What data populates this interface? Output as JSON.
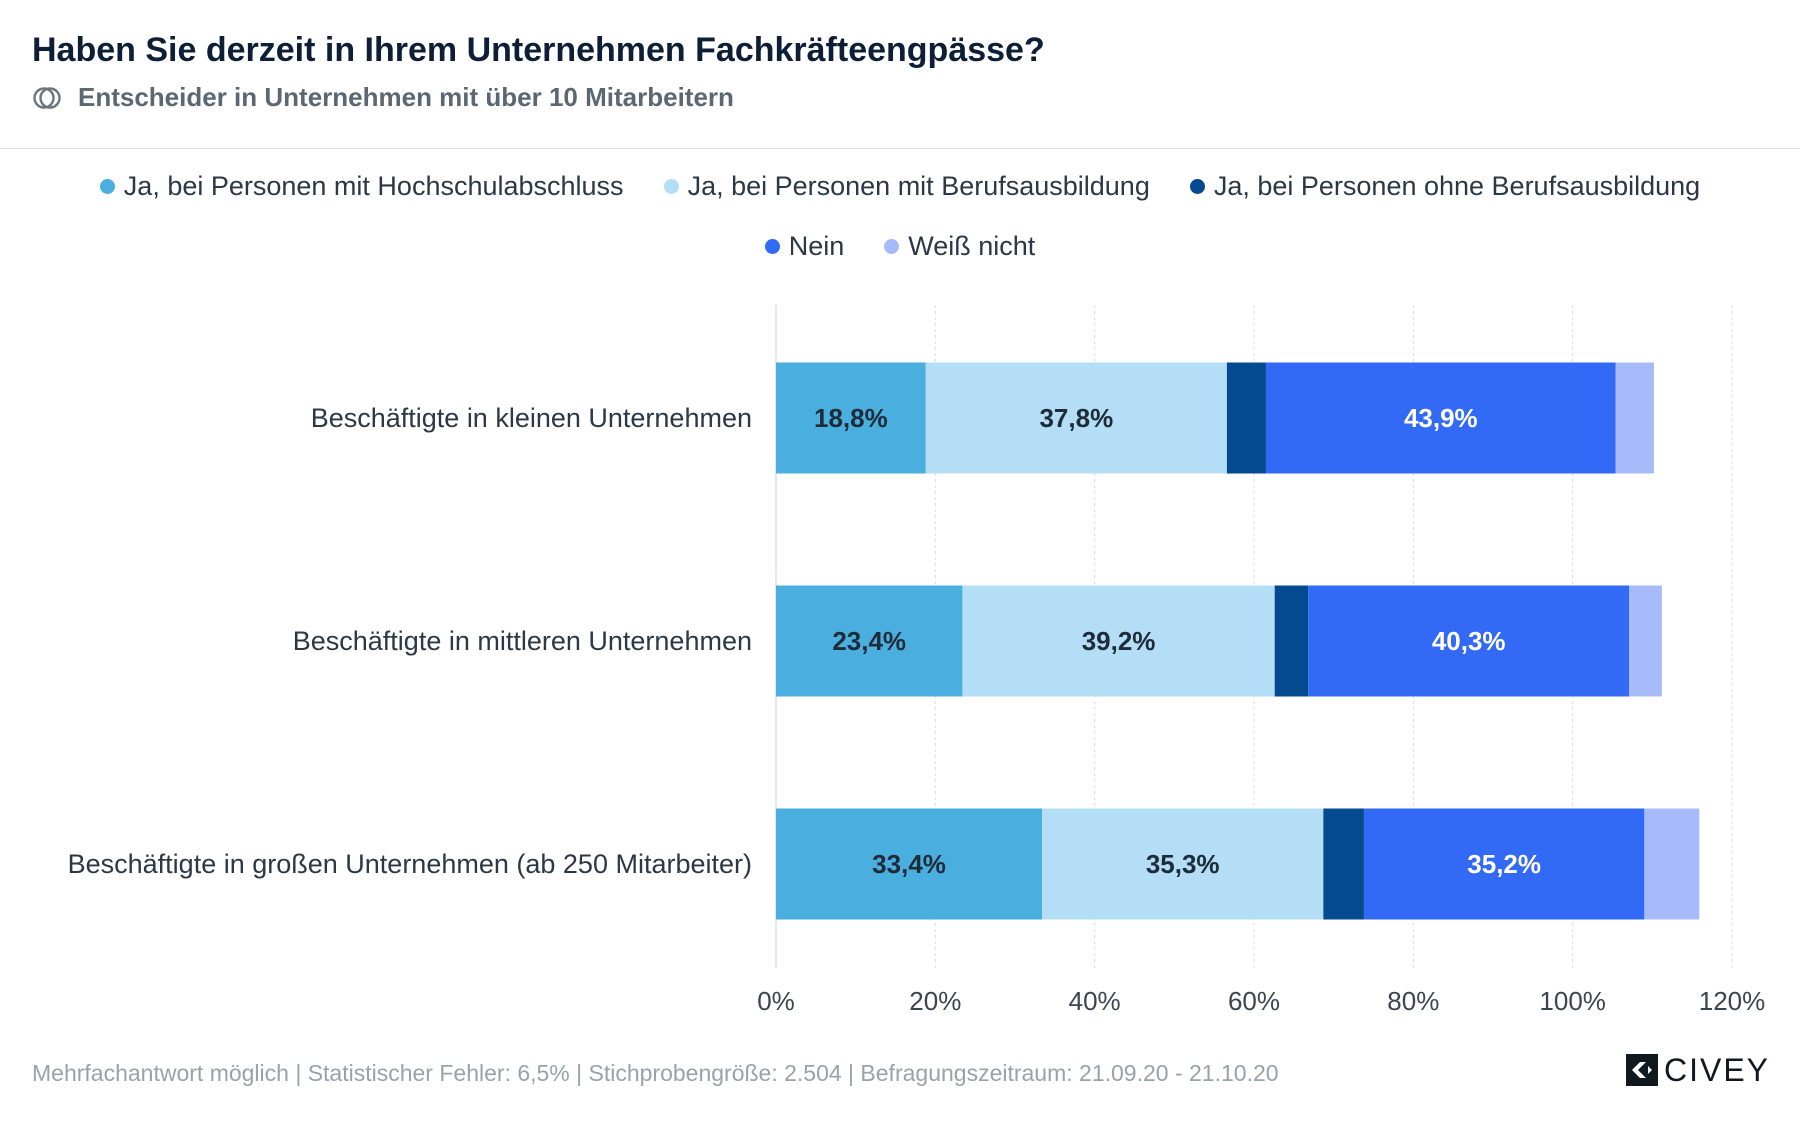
{
  "header": {
    "title": "Haben Sie derzeit in Ihrem Unternehmen Fachkräfteengpässe?",
    "subtitle": "Entscheider in Unternehmen mit über 10 Mitarbeitern",
    "subtitle_icon": "overlapping-circles-icon"
  },
  "footer": {
    "note": "Mehrfachantwort möglich | Statistischer Fehler: 6,5% | Stichprobengröße: 2.504 | Befragungszeitraum: 21.09.20 - 21.10.20"
  },
  "logo": {
    "text": "CIVEY",
    "icon": "civey-mark-icon"
  },
  "chart_data": {
    "type": "bar",
    "orientation": "horizontal",
    "stacked": true,
    "categories": [
      "Beschäftigte in kleinen Unternehmen",
      "Beschäftigte in mittleren Unternehmen",
      "Beschäftigte in großen Unternehmen (ab 250 Mitarbeiter)"
    ],
    "series": [
      {
        "name": "Ja, bei Personen mit Hochschulabschluss",
        "color": "#4aaedf",
        "label_color": "#1e2b38",
        "values": [
          18.8,
          23.4,
          33.4
        ],
        "labels": [
          "18,8%",
          "23,4%",
          "33,4%"
        ]
      },
      {
        "name": "Ja, bei Personen mit Berufsausbildung",
        "color": "#b3def5",
        "label_color": "#1e2b38",
        "values": [
          37.8,
          39.2,
          35.3
        ],
        "labels": [
          "37,8%",
          "39,2%",
          "35,3%"
        ]
      },
      {
        "name": "Ja, bei Personen ohne Berufsausbildung",
        "color": "#034a91",
        "label_color": "#ffffff",
        "values": [
          4.9,
          4.2,
          5.1
        ],
        "labels": [
          "",
          "",
          ""
        ]
      },
      {
        "name": "Nein",
        "color": "#3269f5",
        "label_color": "#ffffff",
        "values": [
          43.9,
          40.3,
          35.2
        ],
        "labels": [
          "43,9%",
          "40,3%",
          "35,2%"
        ]
      },
      {
        "name": "Weiß nicht",
        "color": "#a7bbfa",
        "label_color": "#1e2b38",
        "values": [
          4.8,
          4.1,
          6.9
        ],
        "labels": [
          "",
          "",
          ""
        ]
      }
    ],
    "xlim": [
      0,
      120
    ],
    "xticks": [
      0,
      20,
      40,
      60,
      80,
      100,
      120
    ],
    "xtick_labels": [
      "0%",
      "20%",
      "40%",
      "60%",
      "80%",
      "100%",
      "120%"
    ],
    "grid": "vertical dashed",
    "legend_position": "top-center"
  }
}
